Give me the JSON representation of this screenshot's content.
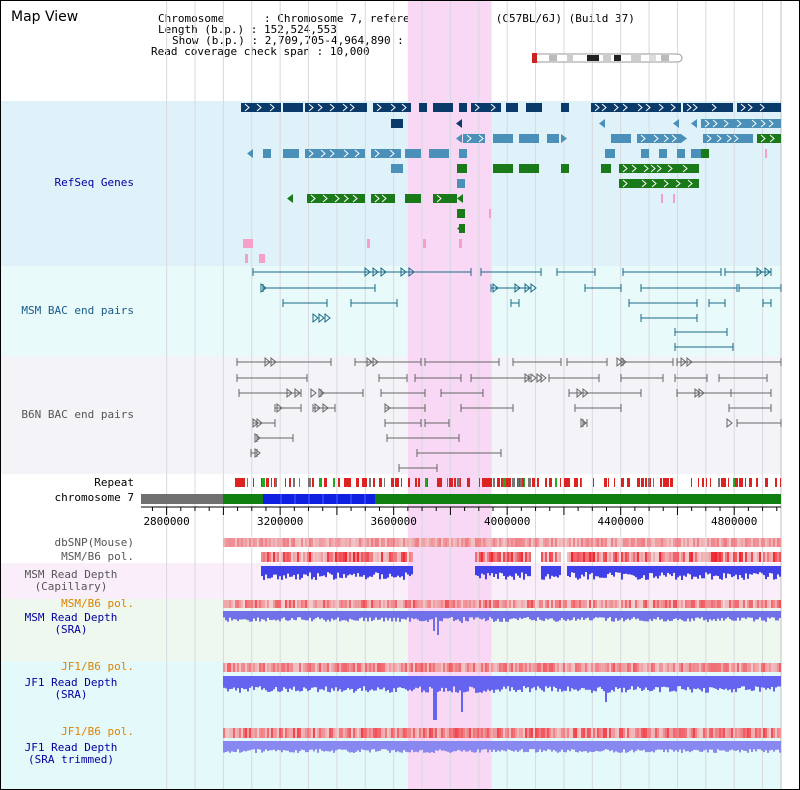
{
  "title": "Map View",
  "info": {
    "chromosome_label": "Chromosome",
    "chromosome_value": "Chromosome 7, reference assembly (C57BL/6J) (Build 37)",
    "length_label": "Length (b.p.)",
    "length_value": "152,524,553",
    "show_label": "Show (b.p.)",
    "show_value": "2,709,705-4,964,890 : 2,255,186 bp",
    "coverage_label": "Read coverage check span",
    "coverage_value": "10,000"
  },
  "tracks": {
    "refseq": "RefSeq Genes",
    "msm_bac": "MSM BAC end pairs",
    "b6n_bac": "B6N BAC end pairs",
    "repeat": "Repeat",
    "chromosome": "chromosome 7",
    "dbsnp": "dbSNP(Mouse)",
    "msm_b6_pol_1": "MSM/B6 pol.",
    "msm_depth_cap_1": "MSM Read Depth",
    "msm_depth_cap_2": "(Capillary)",
    "msm_b6_pol_2": "MSM/B6 pol.",
    "msm_depth_sra_1": "MSM Read Depth",
    "msm_depth_sra_2": "(SRA)",
    "jf1_b6_pol_1": "JF1/B6 pol.",
    "jf1_depth_sra_1": "JF1 Read Depth",
    "jf1_depth_sra_2": "(SRA)",
    "jf1_b6_pol_2": "JF1/B6 pol.",
    "jf1_depth_trim_1": "JF1 Read Depth",
    "jf1_depth_trim_2": "(SRA trimmed)"
  },
  "axis": {
    "ticks": [
      "2800000",
      "3200000",
      "3600000",
      "4000000",
      "4400000",
      "4800000"
    ],
    "range_bp": [
      2709705,
      4964890
    ]
  },
  "colors": {
    "refseq_bg": "#dff2fa",
    "msm_bg": "#e8fafa",
    "b6n_bg": "#f4f4f8",
    "highlight": "#f8d8f4",
    "gene_dark": "#0a3a6a",
    "gene_mid": "#4a90b8",
    "gene_green": "#1a7a1a",
    "gene_pink": "#f4a0c8",
    "bac_msm": "#1a6a8a",
    "bac_b6n": "#666666",
    "depth_blue": "#4040e8",
    "depth_light": "#8888f0",
    "pol_red": "#e83030",
    "chrom_green": "#108010",
    "chrom_blue": "#1020e0",
    "chrom_gray": "#707070"
  },
  "highlight_bp": [
    3650000,
    3945000
  ]
}
